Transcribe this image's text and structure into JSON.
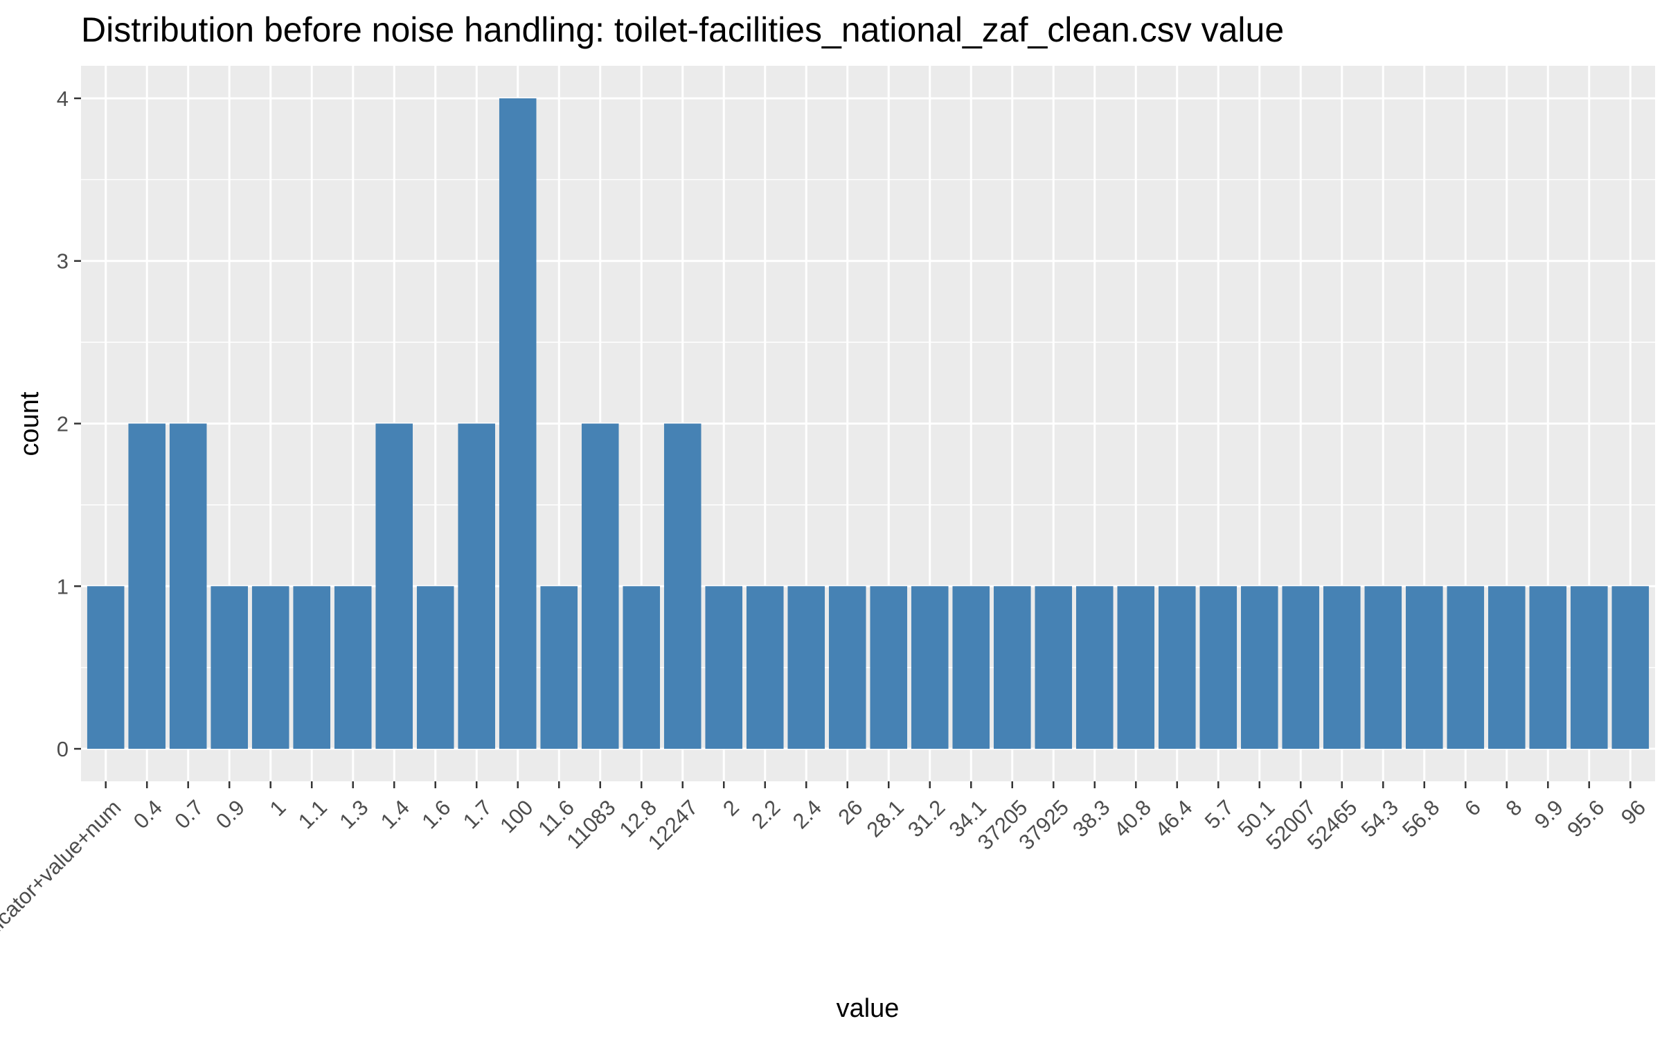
{
  "chart_data": {
    "type": "bar",
    "title": "Distribution before noise handling: toilet-facilities_national_zaf_clean.csv value",
    "xlabel": "value",
    "ylabel": "count",
    "categories": [
      "indicator+value+num",
      "0.4",
      "0.7",
      "0.9",
      "1",
      "1.1",
      "1.3",
      "1.4",
      "1.6",
      "1.7",
      "100",
      "11.6",
      "11083",
      "12.8",
      "12247",
      "2",
      "2.2",
      "2.4",
      "26",
      "28.1",
      "31.2",
      "34.1",
      "37205",
      "37925",
      "38.3",
      "40.8",
      "46.4",
      "5.7",
      "50.1",
      "52007",
      "52465",
      "54.3",
      "56.8",
      "6",
      "8",
      "9.9",
      "95.6",
      "96"
    ],
    "values": [
      1,
      2,
      2,
      1,
      1,
      1,
      1,
      2,
      1,
      2,
      4,
      1,
      2,
      1,
      2,
      1,
      1,
      1,
      1,
      1,
      1,
      1,
      1,
      1,
      1,
      1,
      1,
      1,
      1,
      1,
      1,
      1,
      1,
      1,
      1,
      1,
      1,
      1
    ],
    "ylim": [
      -0.2,
      4.2
    ],
    "yticks": [
      0,
      1,
      2,
      3,
      4
    ],
    "grid": true,
    "bar_color": "#4682B4",
    "panel_background": "#EBEBEB",
    "grid_color": "#FFFFFF"
  }
}
